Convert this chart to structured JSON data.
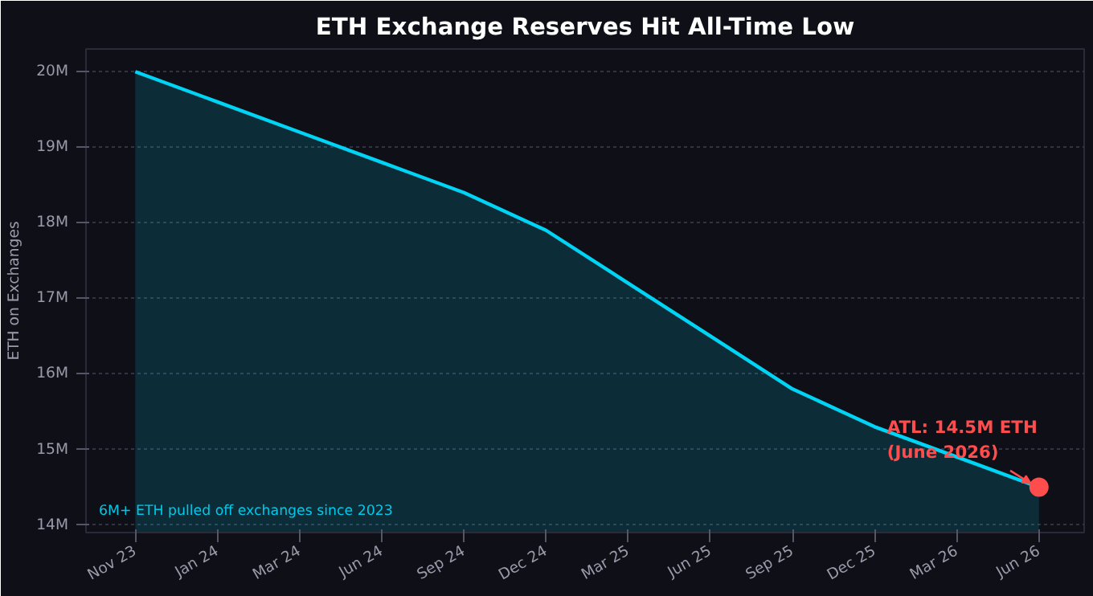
{
  "chart_data": {
    "type": "area",
    "title": "ETH Exchange Reserves Hit All-Time Low",
    "ylabel": "ETH on Exchanges",
    "categories": [
      "Nov 23",
      "Jan 24",
      "Mar 24",
      "Jun 24",
      "Sep 24",
      "Dec 24",
      "Mar 25",
      "Jun 25",
      "Sep 25",
      "Dec 25",
      "Mar 26",
      "Jun 26"
    ],
    "series": [
      {
        "color": "#00d4f5",
        "values": [
          20.0,
          19.6,
          19.2,
          18.8,
          18.4,
          17.9,
          17.2,
          16.5,
          15.8,
          15.3,
          14.9,
          14.5
        ]
      }
    ],
    "ylim": [
      13.9,
      20.3
    ],
    "yticks": [
      {
        "value": 14,
        "label": "14M"
      },
      {
        "value": 15,
        "label": "15M"
      },
      {
        "value": 16,
        "label": "16M"
      },
      {
        "value": 17,
        "label": "17M"
      },
      {
        "value": 18,
        "label": "18M"
      },
      {
        "value": 19,
        "label": "19M"
      },
      {
        "value": 20,
        "label": "20M"
      }
    ],
    "grid": "y",
    "marker": "none",
    "line_style": "solid",
    "annotations": [
      "6M+ ETH pulled off exchanges since 2023",
      {
        "text": "ATL: 14.5M ETH\n(June 2026)",
        "x": "Jun 26",
        "y": 14.5
      }
    ]
  }
}
